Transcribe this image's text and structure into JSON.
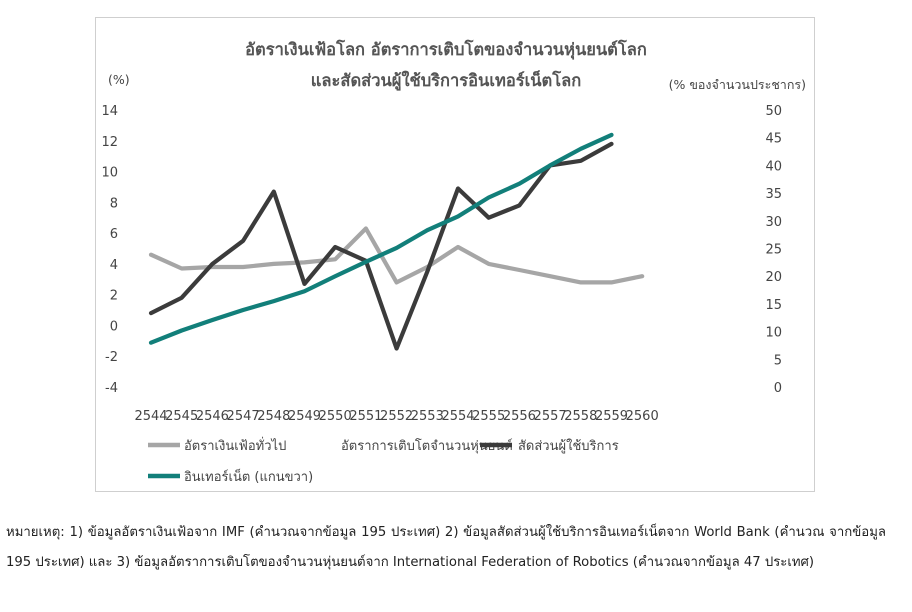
{
  "chart_data": {
    "type": "line",
    "title_line1": "อัตราเงินเฟ้อโลก อัตราการเติบโตของจำนวนหุ่นยนต์โลก",
    "title_line2": "และสัดส่วนผู้ใช้บริการอินเทอร์เน็ตโลก",
    "left_axis_unit": "(%)",
    "right_axis_unit": "(% ของจำนวนประชากร)",
    "categories": [
      "2544",
      "2545",
      "2546",
      "2547",
      "2548",
      "2549",
      "2550",
      "2551",
      "2552",
      "2553",
      "2554",
      "2555",
      "2556",
      "2557",
      "2558",
      "2559",
      "2560"
    ],
    "left_ylim": [
      -4,
      14
    ],
    "left_ticks": [
      "14",
      "12",
      "10",
      "8",
      "6",
      "4",
      "2",
      "0",
      "-2",
      "-4"
    ],
    "right_ylim": [
      0,
      50
    ],
    "right_ticks": [
      "50",
      "45",
      "40",
      "35",
      "30",
      "25",
      "20",
      "15",
      "10",
      "5",
      "0"
    ],
    "grid": false,
    "legend_position": "bottom",
    "series": [
      {
        "name": "อัตราเงินเฟ้อทั่วไป",
        "axis": "left",
        "color": "#a6a6a6",
        "values": [
          4.6,
          3.7,
          3.8,
          3.8,
          4.0,
          4.1,
          4.3,
          6.3,
          2.8,
          3.8,
          5.1,
          4.0,
          3.6,
          3.2,
          2.8,
          2.8,
          3.2
        ]
      },
      {
        "name": "อัตราการเติบโตจำนวนหุ่นยนต์",
        "axis": "left",
        "color": "#3b3b3b",
        "values": [
          0.8,
          1.8,
          4.0,
          5.5,
          8.7,
          2.7,
          5.1,
          4.2,
          -1.5,
          3.5,
          8.9,
          7.0,
          7.8,
          10.4,
          10.7,
          11.8,
          null
        ]
      },
      {
        "name": "สัดส่วนผู้ใช้บริการอินเทอร์เน็ต (แกนขวา)",
        "legend_line1": "สัดส่วนผู้ใช้บริการ",
        "legend_line2": "อินเทอร์เน็ต (แกนขวา)",
        "axis": "right",
        "color": "#127f7a",
        "values": [
          8.0,
          10.2,
          12.1,
          13.9,
          15.5,
          17.3,
          20.0,
          22.6,
          25.1,
          28.3,
          30.8,
          34.2,
          36.7,
          40.0,
          43.0,
          45.5,
          null
        ]
      }
    ]
  },
  "footnote": "หมายเหตุ: 1) ข้อมูลอัตราเงินเฟ้อจาก IMF (คำนวณจากข้อมูล 195 ประเทศ) 2) ข้อมูลสัดส่วนผู้ใช้บริการอินเทอร์เน็ตจาก World Bank (คำนวณ จากข้อมูล 195 ประเทศ) และ 3) ข้อมูลอัตราการเติบโตของจำนวนหุ่นยนต์จาก International Federation of Robotics (คำนวณจากข้อมูล 47 ประเทศ)"
}
